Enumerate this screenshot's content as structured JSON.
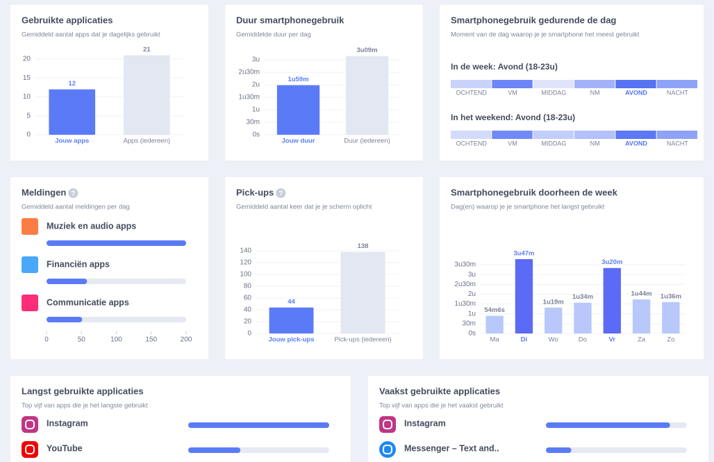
{
  "cards": [
    {
      "type": "bar",
      "title": "Gebruikte applicaties",
      "subtitle": "Gemiddeld aantal apps dat je dagelijks gebruikt",
      "categories": [
        "Jouw apps",
        "Apps (iedereen)"
      ],
      "values": [
        12,
        21
      ],
      "colors": [
        "#5b7bf6",
        "#e3e7f2"
      ],
      "emphasis": [
        true,
        false
      ],
      "ylim": [
        0,
        22
      ],
      "yticks": [
        0,
        5,
        10,
        15,
        20
      ]
    },
    {
      "type": "bar",
      "title": "Duur smartphonegebruik",
      "subtitle": "Gemiddelde duur per dag",
      "categories": [
        "Jouw duur",
        "Duur (iedereen)"
      ],
      "values": [
        119,
        189
      ],
      "value_labels": [
        "1u59m",
        "3u09m"
      ],
      "colors": [
        "#5b7bf6",
        "#e3e7f2"
      ],
      "emphasis": [
        true,
        false
      ],
      "ylim": [
        0,
        190
      ],
      "yticks": [
        {
          "value": 0,
          "label": "0s"
        },
        {
          "value": 30,
          "label": "30m"
        },
        {
          "value": 60,
          "label": "1u"
        },
        {
          "value": 90,
          "label": "1u30m"
        },
        {
          "value": 120,
          "label": "2u"
        },
        {
          "value": 150,
          "label": "2u30m"
        },
        {
          "value": 180,
          "label": "3u"
        }
      ]
    },
    {
      "type": "dayparts",
      "title": "Smartphonegebruik gedurende de dag",
      "subtitle": "Moment van de dag waarop je je smartphone het meest gebruikt",
      "segments": [
        "OCHTEND",
        "VM",
        "MIDDAG",
        "NM",
        "AVOND",
        "NACHT"
      ],
      "emphasis": [
        false,
        false,
        false,
        false,
        true,
        false
      ],
      "rows": [
        {
          "label": "In de week: Avond (18-23u)",
          "colors": [
            "#c9d3fb",
            "#6c86f5",
            "#dfe4fb",
            "#a2b2f8",
            "#5573f2",
            "#8ea2f7"
          ]
        },
        {
          "label": "In het weekend: Avond (18-23u)",
          "colors": [
            "#d3dbfb",
            "#7189f5",
            "#c2cdfa",
            "#b3c0f9",
            "#5c78f3",
            "#8ea2f7"
          ]
        }
      ]
    },
    {
      "type": "hbar",
      "title": "Meldingen",
      "help_icon": "?",
      "subtitle": "Gemiddeld aantal meldingen per dag",
      "items": [
        {
          "name": "Muziek en audio apps",
          "value": 200,
          "icon_color": "#fb7d45"
        },
        {
          "name": "Financiën apps",
          "value": 58,
          "icon_color": "#4aa8f8"
        },
        {
          "name": "Communicatie apps",
          "value": 51,
          "icon_color": "#fb2e77"
        }
      ],
      "color": "#5b7bf5",
      "xlim": [
        0,
        200
      ],
      "xticks": [
        0,
        50,
        100,
        150,
        200
      ]
    },
    {
      "type": "bar",
      "title": "Pick-ups",
      "help_icon": "?",
      "subtitle": "Gemiddeld aantal keer dat je je scherm oplicht",
      "categories": [
        "Jouw pick-ups",
        "Pick-ups (iedereen)"
      ],
      "values": [
        44,
        138
      ],
      "colors": [
        "#5b7bf6",
        "#e3e7f2"
      ],
      "emphasis": [
        true,
        false
      ],
      "ylim": [
        0,
        140
      ],
      "yticks": [
        0,
        20,
        40,
        60,
        80,
        100,
        120,
        140
      ]
    },
    {
      "type": "bar",
      "title": "Smartphonegebruik doorheen de week",
      "subtitle": "Dag(en) waarop je je smartphone het langst gebruikt",
      "categories": [
        "Ma",
        "Di",
        "Wo",
        "Do",
        "Vr",
        "Za",
        "Zo"
      ],
      "values": [
        54.1,
        227,
        79,
        94,
        200,
        104,
        96
      ],
      "value_labels": [
        "54m6s",
        "3u47m",
        "1u19m",
        "1u34m",
        "3u20m",
        "1u44m",
        "1u36m"
      ],
      "colors": [
        "#b8c8fb",
        "#5b6bf5",
        "#b8c8fb",
        "#b8c8fb",
        "#5b6bf5",
        "#b8c8fb",
        "#b8c8fb"
      ],
      "emphasis": [
        false,
        true,
        false,
        false,
        true,
        false,
        false
      ],
      "ylim": [
        0,
        230
      ],
      "yticks": [
        {
          "value": 0,
          "label": "0s"
        },
        {
          "value": 30,
          "label": "30m"
        },
        {
          "value": 60,
          "label": "1u"
        },
        {
          "value": 90,
          "label": "1u30m"
        },
        {
          "value": 120,
          "label": "2u"
        },
        {
          "value": 150,
          "label": "2u30m"
        },
        {
          "value": 180,
          "label": "3u"
        },
        {
          "value": 210,
          "label": "3u30m"
        }
      ]
    },
    {
      "type": "apps",
      "title": "Langst gebruikte applicaties",
      "subtitle": "Top vijf van apps die je het langste gebruikt",
      "items": [
        {
          "name": "Instagram",
          "value": 100,
          "icon_color": "#c13584"
        },
        {
          "name": "YouTube",
          "value": 37,
          "icon_color": "#f00000"
        }
      ],
      "color": "#5b7bf5",
      "xlim": [
        0,
        100
      ]
    },
    {
      "type": "apps",
      "title": "Vaakst gebruikte applicaties",
      "subtitle": "Top vijf van apps die je het vaakst gebruikt",
      "items": [
        {
          "name": "Instagram",
          "value": 88,
          "icon_color": "#c13584"
        },
        {
          "name": "Messenger – Text and..",
          "value": 18,
          "icon_color": "#1e88f5"
        }
      ],
      "color": "#5b7bf5",
      "xlim": [
        0,
        100
      ]
    }
  ]
}
